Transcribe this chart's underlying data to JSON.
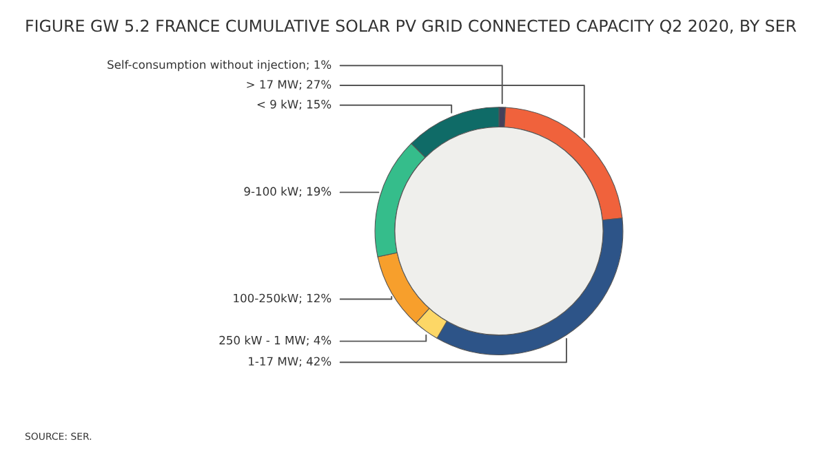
{
  "chart_data": {
    "type": "donut",
    "title": "FIGURE GW 5.2 FRANCE CUMULATIVE SOLAR PV GRID CONNECTED CAPACITY Q2 2020, BY SER",
    "categories": [
      "Self-consumption without injection; 1%",
      "> 17 MW; 27%",
      "1-17 MW; 42%",
      "250 kW - 1 MW; 4%",
      "100-250kW; 12%",
      "9-100 kW; 19%",
      "< 9 kW; 15%"
    ],
    "values": [
      1,
      27,
      42,
      4,
      12,
      19,
      15
    ],
    "colors": [
      "#45405a",
      "#f0623c",
      "#2d5488",
      "#fdd766",
      "#f79f2c",
      "#35bd8b",
      "#0f6b67"
    ],
    "annotations": [
      "SOURCE: SER."
    ]
  }
}
